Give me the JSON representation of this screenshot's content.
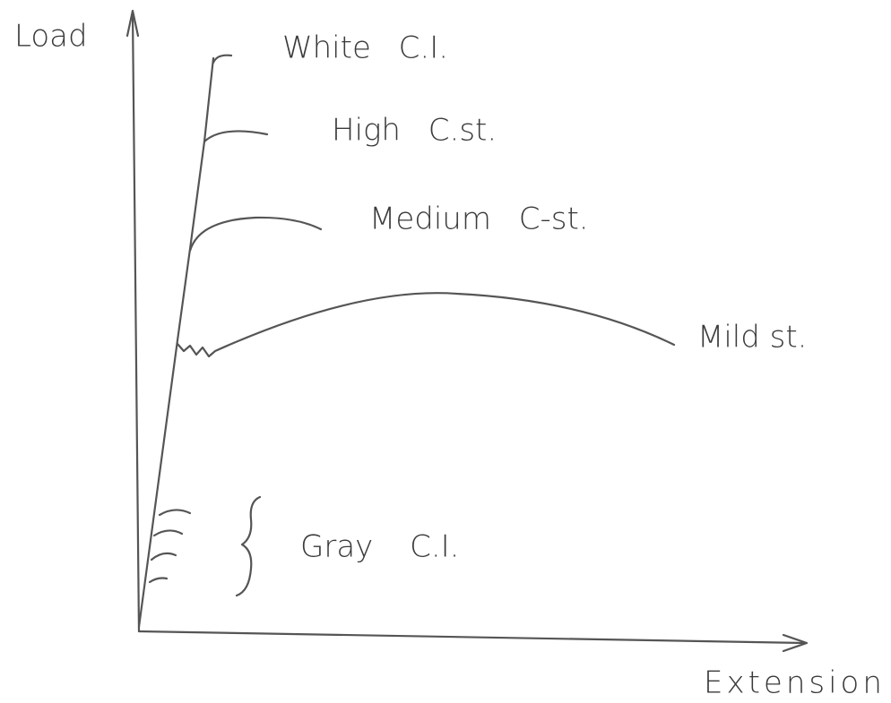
{
  "axes": {
    "y_label": "Load",
    "x_label": "Extension"
  },
  "curves": [
    {
      "label": "White C.I."
    },
    {
      "label": "High C.st."
    },
    {
      "label": "Medium C-st."
    },
    {
      "label": "Mild st."
    },
    {
      "label": "Gray C.I."
    }
  ]
}
